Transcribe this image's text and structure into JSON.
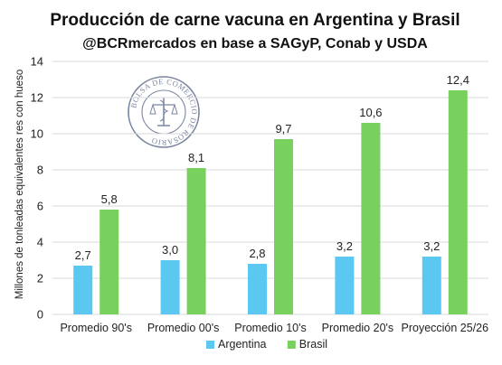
{
  "chart_data": {
    "type": "bar",
    "title": "Producción de carne vacuna en Argentina y Brasil",
    "subtitle": "@BCRmercados en base a SAGyP, Conab y USDA",
    "ylabel": "Millones de tonleadas equivalentes res con hueso",
    "xlabel": "",
    "ylim": [
      0,
      14
    ],
    "yticks": [
      0,
      2,
      4,
      6,
      8,
      10,
      12,
      14
    ],
    "grid": true,
    "legend_position": "bottom",
    "categories": [
      "Promedio 90's",
      "Promedio 00's",
      "Promedio 10's",
      "Promedio 20's",
      "Proyección 25/26"
    ],
    "series": [
      {
        "name": "Argentina",
        "color": "#5bc8f2",
        "values": [
          2.7,
          3.0,
          2.8,
          3.2,
          3.2
        ],
        "labels": [
          "2,7",
          "3,0",
          "2,8",
          "3,2",
          "3,2"
        ]
      },
      {
        "name": "Brasil",
        "color": "#77d15c",
        "values": [
          5.8,
          8.1,
          9.7,
          10.6,
          12.4
        ],
        "labels": [
          "5,8",
          "8,1",
          "9,7",
          "10,6",
          "12,4"
        ]
      }
    ]
  },
  "watermark": {
    "text": "BOLSA DE COMERCIO DE ROSARIO",
    "color": "#7a86a0"
  }
}
